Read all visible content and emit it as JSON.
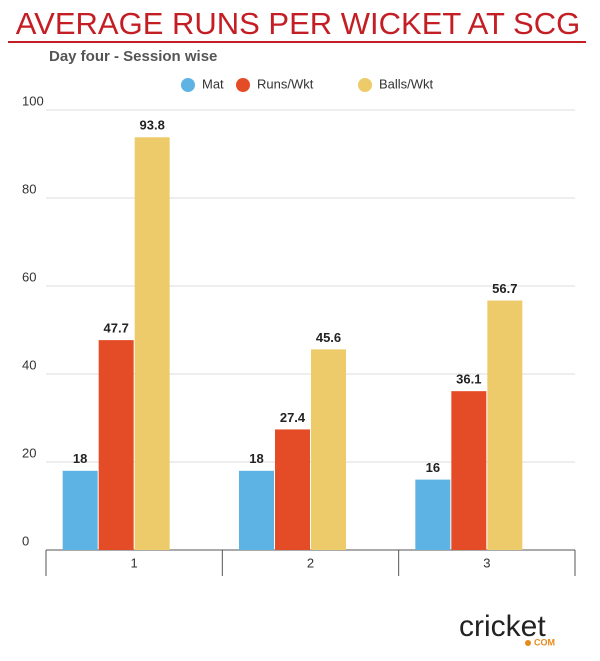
{
  "chart_data": {
    "type": "bar",
    "title": "AVERAGE RUNS PER WICKET AT SCG",
    "subtitle": "Day four - Session wise",
    "categories": [
      "1",
      "2",
      "3"
    ],
    "series": [
      {
        "name": "Mat",
        "color": "#5db3e4",
        "values": [
          18,
          18,
          16
        ]
      },
      {
        "name": "Runs/Wkt",
        "color": "#e44c27",
        "values": [
          47.7,
          27.4,
          36.1
        ]
      },
      {
        "name": "Balls/Wkt",
        "color": "#eecb6a",
        "values": [
          93.8,
          45.6,
          56.7
        ]
      }
    ],
    "ylim": [
      0,
      100
    ],
    "yticks": [
      0,
      20,
      40,
      60,
      80,
      100
    ],
    "grid": true,
    "legend": "top"
  },
  "logo": {
    "text": "cricket",
    "suffix": "COM"
  }
}
